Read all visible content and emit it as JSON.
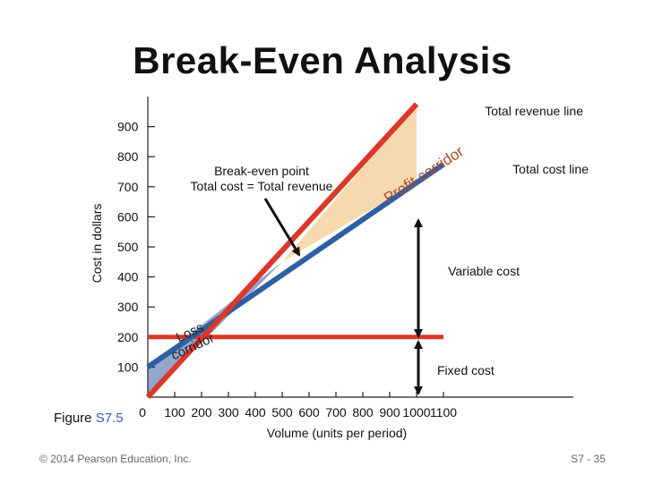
{
  "title": "Break-Even Analysis",
  "figure_label": {
    "prefix": "Figure",
    "number": "S7.5"
  },
  "footer": {
    "copyright": "© 2014 Pearson Education, Inc.",
    "page": "S7 - 35"
  },
  "chart_data": {
    "type": "line",
    "ylabel": "Cost in dollars",
    "xlabel": "Volume (units per period)",
    "x_ticks": [
      0,
      100,
      200,
      300,
      400,
      500,
      600,
      700,
      800,
      900,
      1000,
      1100
    ],
    "x_tick_labels": [
      "0",
      "100",
      "200",
      "300",
      "400",
      "500",
      "600",
      "700",
      "800",
      "900",
      "1000",
      "1100"
    ],
    "y_ticks": [
      100,
      200,
      300,
      400,
      500,
      600,
      700,
      800,
      900
    ],
    "y_tick_labels": [
      "100",
      "200",
      "300",
      "400",
      "500",
      "600",
      "700",
      "800",
      "900"
    ],
    "xlim": [
      0,
      1100
    ],
    "ylim": [
      0,
      1000
    ],
    "series": [
      {
        "name": "Total revenue line",
        "color": "#d9382a",
        "x": [
          0,
          1000
        ],
        "y": [
          0,
          975
        ]
      },
      {
        "name": "Total cost line",
        "color": "#2f5fa3",
        "x": [
          0,
          1100
        ],
        "y": [
          100,
          775
        ]
      },
      {
        "name": "Fixed cost",
        "color": "#d9382a",
        "x": [
          0,
          1100
        ],
        "y": [
          200,
          200
        ]
      }
    ],
    "break_even": {
      "x": 500,
      "y": 450
    },
    "annotations": {
      "break_even_line1": "Break-even point",
      "break_even_line2": "Total cost = Total revenue",
      "variable_cost": "Variable cost",
      "fixed_cost": "Fixed cost",
      "profit_corridor": "Profit corridor",
      "loss_corridor_line1": "Loss",
      "loss_corridor_line2": "corridor"
    },
    "colors": {
      "profit_fill": "#f7d9b0",
      "loss_fill": "#93a7cc",
      "arrow": "#111111"
    }
  }
}
